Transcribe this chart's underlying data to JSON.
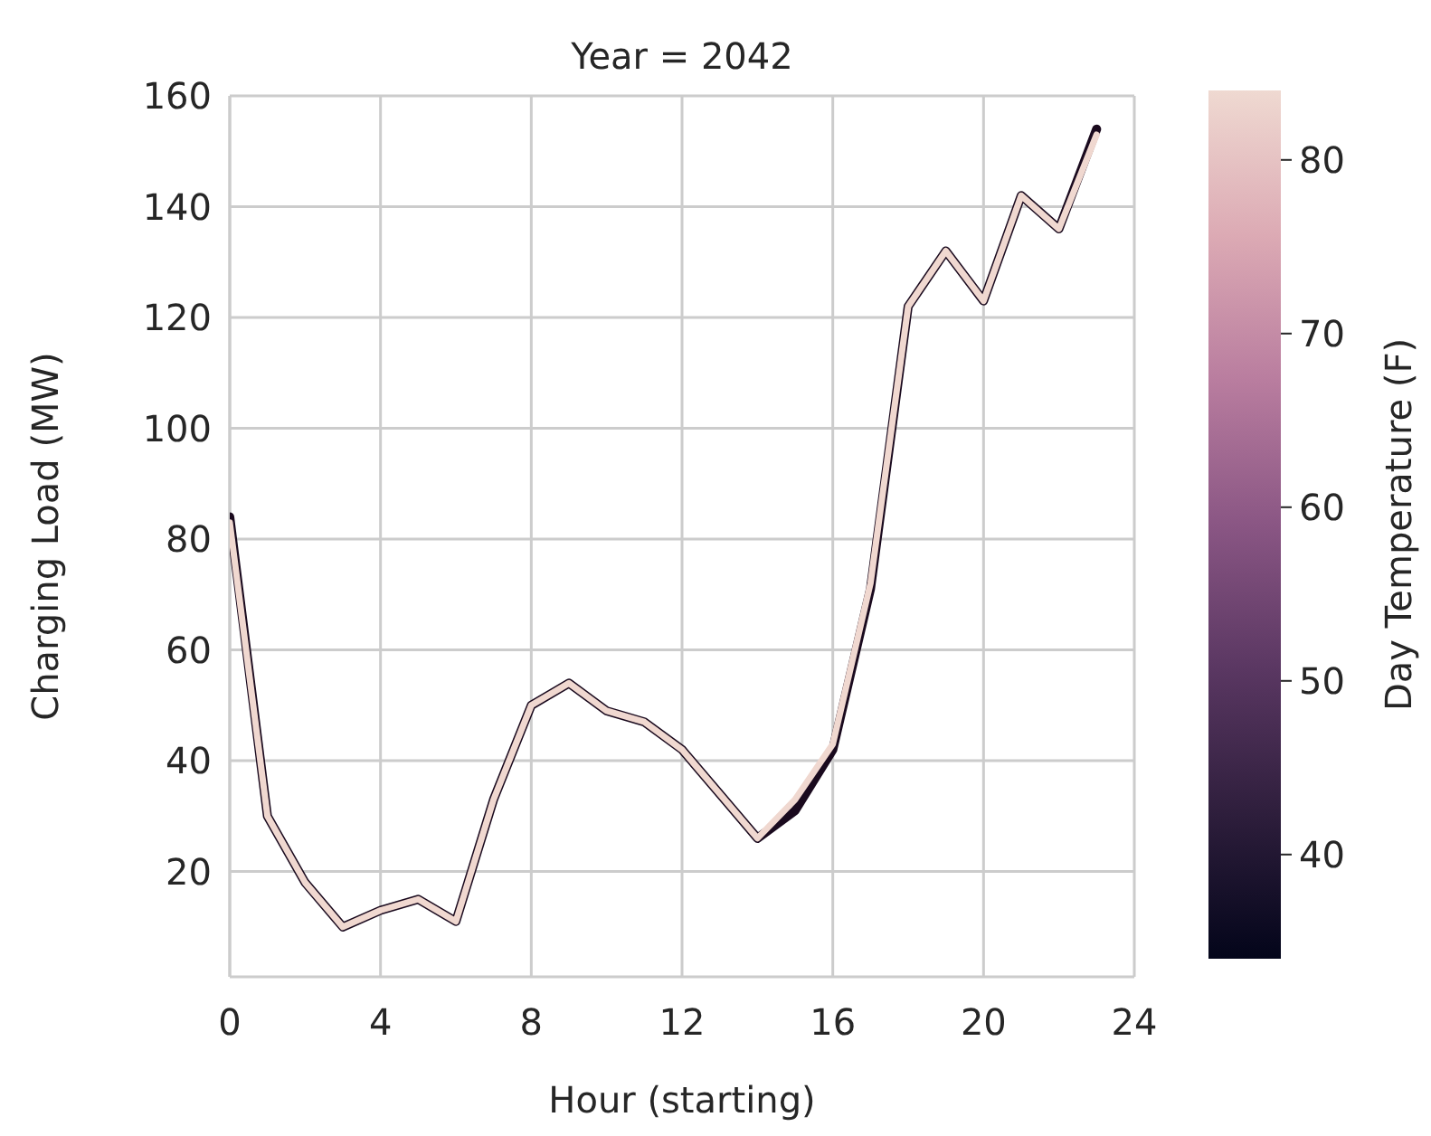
{
  "chart_data": {
    "type": "line",
    "title": "Year = 2042",
    "xlabel": "Hour (starting)",
    "ylabel": "Charging Load (MW)",
    "clabel": "Day Temperature (F)",
    "x": [
      0,
      1,
      2,
      3,
      4,
      5,
      6,
      7,
      8,
      9,
      10,
      11,
      12,
      13,
      14,
      15,
      16,
      17,
      18,
      19,
      20,
      21,
      22,
      23
    ],
    "series": [
      {
        "color": "#1a0a1e",
        "values": [
          84,
          30,
          18,
          10,
          13,
          15,
          11,
          33,
          50,
          54,
          49,
          47,
          42,
          34,
          26,
          31,
          42,
          71,
          122,
          132,
          123,
          142,
          136,
          154
        ]
      },
      {
        "color": "#f0d8d0",
        "values": [
          83,
          30,
          18,
          10,
          13,
          15,
          11,
          33,
          50,
          54,
          49,
          47,
          42,
          34,
          26,
          33,
          43,
          72,
          122,
          132,
          123,
          142,
          136,
          153
        ]
      }
    ],
    "xlim": [
      0,
      24
    ],
    "xticks": [
      0,
      4,
      8,
      12,
      16,
      20,
      24
    ],
    "ylim": [
      1,
      160
    ],
    "yticks": [
      20,
      40,
      60,
      80,
      100,
      120,
      140,
      160
    ],
    "clim": [
      34,
      84
    ],
    "cticks": [
      40,
      50,
      60,
      70,
      80
    ],
    "grid": true
  }
}
